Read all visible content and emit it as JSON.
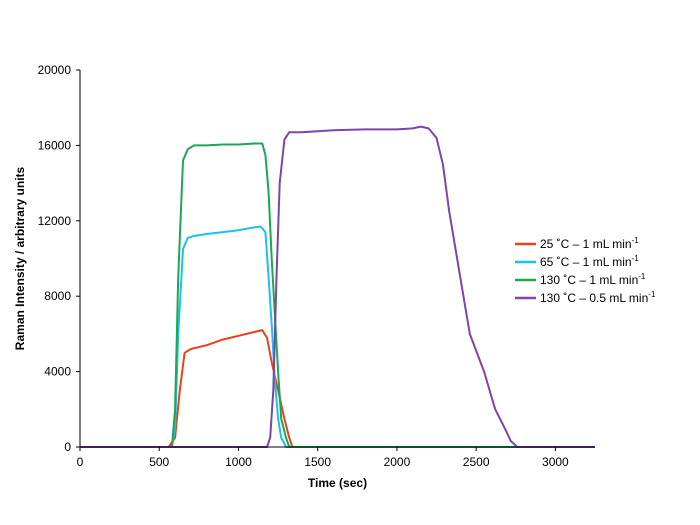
{
  "chart_data": {
    "type": "line",
    "title": "",
    "xlabel": "Time (sec)",
    "ylabel": "Raman Intensity / arbitrary units",
    "xlim": [
      0,
      3250
    ],
    "ylim": [
      0,
      20000
    ],
    "x_ticks": [
      0,
      500,
      1000,
      1500,
      2000,
      2500,
      3000
    ],
    "y_ticks": [
      0,
      4000,
      8000,
      12000,
      16000,
      20000
    ],
    "grid": false,
    "legend_position": "right",
    "series": [
      {
        "name": "25 ˚C – 1 mL min",
        "name_sup": "-1",
        "color": "#e8411c",
        "x": [
          0,
          560,
          600,
          630,
          660,
          700,
          800,
          900,
          1000,
          1100,
          1150,
          1180,
          1210,
          1250,
          1290,
          1320,
          1340,
          3250
        ],
        "y": [
          0,
          0,
          500,
          3000,
          5000,
          5200,
          5400,
          5700,
          5900,
          6100,
          6200,
          5800,
          4500,
          3000,
          1500,
          500,
          0,
          0
        ]
      },
      {
        "name": "65 ˚C – 1 mL min",
        "name_sup": "-1",
        "color": "#1ec0ea",
        "x": [
          0,
          580,
          600,
          620,
          650,
          680,
          720,
          800,
          900,
          1000,
          1100,
          1140,
          1170,
          1190,
          1210,
          1230,
          1250,
          1270,
          1300,
          1320,
          3250
        ],
        "y": [
          0,
          0,
          1000,
          6000,
          10500,
          11100,
          11200,
          11300,
          11400,
          11500,
          11650,
          11700,
          11400,
          9000,
          6500,
          3500,
          1500,
          500,
          0,
          0,
          0
        ]
      },
      {
        "name": "130 ˚C – 1 mL min",
        "name_sup": "-1",
        "color": "#1aa853",
        "x": [
          0,
          580,
          600,
          620,
          650,
          680,
          720,
          800,
          900,
          1000,
          1100,
          1150,
          1170,
          1190,
          1210,
          1230,
          1250,
          1270,
          1300,
          1320,
          3250
        ],
        "y": [
          0,
          0,
          2000,
          9000,
          15200,
          15800,
          16000,
          16000,
          16050,
          16050,
          16100,
          16100,
          15500,
          13500,
          10000,
          7000,
          4000,
          1500,
          500,
          0,
          0
        ]
      },
      {
        "name": "130 ˚C – 0.5 mL min",
        "name_sup": "-1",
        "color": "#7b45ad",
        "x": [
          0,
          1180,
          1200,
          1220,
          1240,
          1260,
          1290,
          1320,
          1400,
          1600,
          1800,
          2000,
          2100,
          2150,
          2200,
          2250,
          2290,
          2330,
          2400,
          2460,
          2550,
          2620,
          2680,
          2720,
          2760,
          3250
        ],
        "y": [
          0,
          0,
          500,
          3000,
          9000,
          14000,
          16300,
          16700,
          16700,
          16800,
          16850,
          16850,
          16900,
          17000,
          16900,
          16400,
          15000,
          12500,
          9000,
          6000,
          4000,
          2000,
          1000,
          300,
          0,
          0
        ]
      }
    ]
  }
}
